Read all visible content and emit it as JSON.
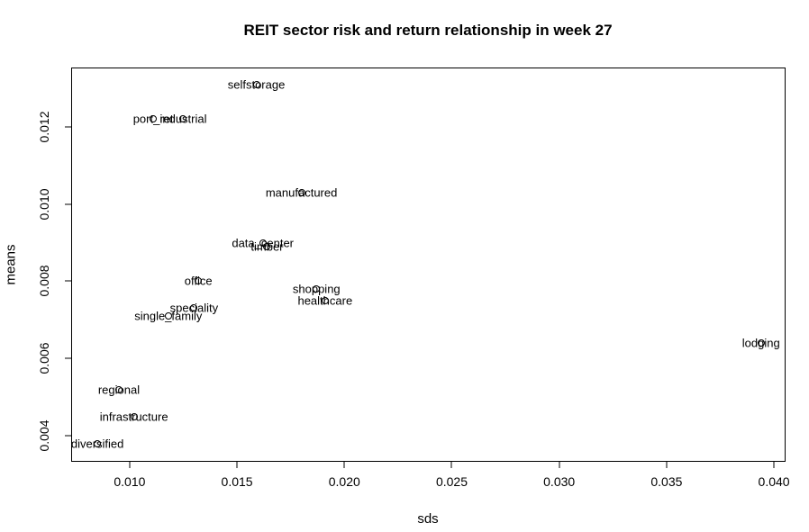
{
  "chart_data": {
    "type": "scatter",
    "title": "REIT sector risk and return relationship in week 27",
    "xlabel": "sds",
    "ylabel": "means",
    "xlim": [
      0.00732,
      0.0405
    ],
    "ylim": [
      0.00335,
      0.01351
    ],
    "grid": false,
    "legend": false,
    "background_color": "#ffffff",
    "marker": "open-circle",
    "marker_color": "#000000",
    "text_color": "#000000",
    "x_ticks": {
      "values": [
        0.01,
        0.015,
        0.02,
        0.025,
        0.03,
        0.035,
        0.04
      ],
      "labels": [
        "0.010",
        "0.015",
        "0.020",
        "0.025",
        "0.030",
        "0.035",
        "0.040"
      ]
    },
    "y_ticks": {
      "values": [
        0.004,
        0.006,
        0.008,
        0.01,
        0.012
      ],
      "labels": [
        "0.004",
        "0.006",
        "0.008",
        "0.010",
        "0.012"
      ]
    },
    "points": [
      {
        "label": "selfstorage",
        "sds": 0.0159,
        "means": 0.0131
      },
      {
        "label": "port_ret",
        "sds": 0.0111,
        "means": 0.0122
      },
      {
        "label": "industrial",
        "sds": 0.0125,
        "means": 0.0122
      },
      {
        "label": "manufactured",
        "sds": 0.018,
        "means": 0.0103
      },
      {
        "label": "data_center",
        "sds": 0.0162,
        "means": 0.009
      },
      {
        "label": "timber",
        "sds": 0.0164,
        "means": 0.0089
      },
      {
        "label": "office",
        "sds": 0.0132,
        "means": 0.008
      },
      {
        "label": "shopping",
        "sds": 0.0187,
        "means": 0.0078
      },
      {
        "label": "healthcare",
        "sds": 0.0191,
        "means": 0.0075
      },
      {
        "label": "speciality",
        "sds": 0.013,
        "means": 0.0073
      },
      {
        "label": "single_family",
        "sds": 0.0118,
        "means": 0.0071
      },
      {
        "label": "lodging",
        "sds": 0.0394,
        "means": 0.0064
      },
      {
        "label": "regional",
        "sds": 0.0095,
        "means": 0.0052
      },
      {
        "label": "infrastructure",
        "sds": 0.0102,
        "means": 0.0045
      },
      {
        "label": "diversified",
        "sds": 0.0085,
        "means": 0.0038
      }
    ]
  }
}
